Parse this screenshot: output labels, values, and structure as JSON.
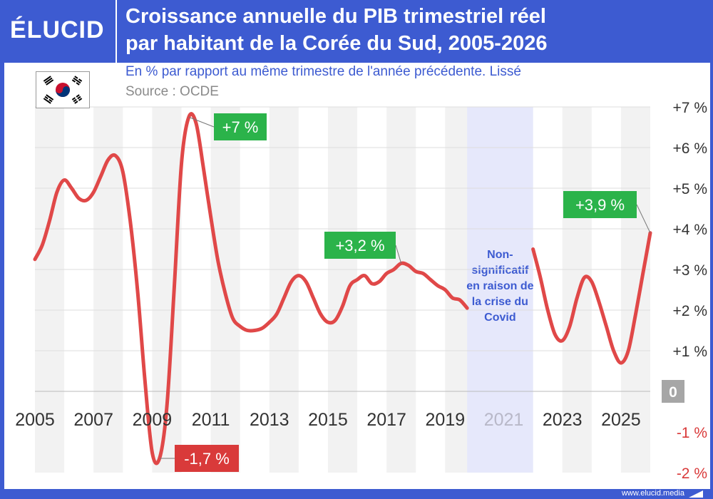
{
  "brand": {
    "logo_text": "ÉLUCID",
    "website": "www.elucid.media"
  },
  "header": {
    "title_line1": "Croissance annuelle du PIB trimestriel réel",
    "title_line2": "par habitant de la Corée du Sud, 2005-2026"
  },
  "subtitle": "En % par rapport au même trimestre de l'année précédente. Lissé",
  "source": "Source : OCDE",
  "flag_icon": "south-korea-flag-icon",
  "colors": {
    "line": "#e04848",
    "label_positive": "#2bb34a",
    "label_negative": "#d93a3a",
    "covid_band": "#e6e8fb",
    "covid_text": "#3d5bd1",
    "band_gray": "#f2f2f2",
    "axis_text": "#333333",
    "negative_tick": "#d93a3a",
    "zero_box": "#a6a6a6"
  },
  "chart_data": {
    "type": "line",
    "title": "",
    "xlabel": "",
    "ylabel": "",
    "xlim": [
      2005,
      2026
    ],
    "ylim": [
      -2,
      7
    ],
    "grid": true,
    "x_tick_labels": [
      "2005",
      "2007",
      "2009",
      "2011",
      "2013",
      "2015",
      "2017",
      "2019",
      "2021",
      "2023",
      "2025"
    ],
    "x_tick_values": [
      2005,
      2007,
      2009,
      2011,
      2013,
      2015,
      2017,
      2019,
      2021,
      2023,
      2025
    ],
    "y_tick_labels": [
      "+7 %",
      "+6 %",
      "+5 %",
      "+4 %",
      "+3 %",
      "+2 %",
      "+1 %",
      "0",
      "-1 %",
      "-2 %"
    ],
    "y_tick_values": [
      7,
      6,
      5,
      4,
      3,
      2,
      1,
      0,
      -1,
      -2
    ],
    "series": [
      {
        "segments": [
          [
            [
              2005.0,
              3.25
            ],
            [
              2005.25,
              3.6
            ],
            [
              2005.5,
              4.2
            ],
            [
              2005.75,
              4.9
            ],
            [
              2006.0,
              5.2
            ],
            [
              2006.25,
              5.0
            ],
            [
              2006.5,
              4.75
            ],
            [
              2006.75,
              4.7
            ],
            [
              2007.0,
              4.9
            ],
            [
              2007.25,
              5.3
            ],
            [
              2007.5,
              5.7
            ],
            [
              2007.75,
              5.8
            ],
            [
              2008.0,
              5.4
            ],
            [
              2008.25,
              4.2
            ],
            [
              2008.5,
              2.5
            ],
            [
              2008.75,
              0.3
            ],
            [
              2009.0,
              -1.5
            ],
            [
              2009.25,
              -1.65
            ],
            [
              2009.5,
              -0.4
            ],
            [
              2009.75,
              2.5
            ],
            [
              2010.0,
              5.6
            ],
            [
              2010.25,
              6.75
            ],
            [
              2010.5,
              6.6
            ],
            [
              2010.75,
              5.5
            ],
            [
              2011.0,
              4.3
            ],
            [
              2011.25,
              3.2
            ],
            [
              2011.5,
              2.4
            ],
            [
              2011.75,
              1.8
            ],
            [
              2012.0,
              1.6
            ],
            [
              2012.25,
              1.5
            ],
            [
              2012.5,
              1.5
            ],
            [
              2012.75,
              1.55
            ],
            [
              2013.0,
              1.7
            ],
            [
              2013.25,
              1.9
            ],
            [
              2013.5,
              2.3
            ],
            [
              2013.75,
              2.7
            ],
            [
              2014.0,
              2.85
            ],
            [
              2014.25,
              2.7
            ],
            [
              2014.5,
              2.3
            ],
            [
              2014.75,
              1.9
            ],
            [
              2015.0,
              1.7
            ],
            [
              2015.25,
              1.75
            ],
            [
              2015.5,
              2.1
            ],
            [
              2015.75,
              2.6
            ],
            [
              2016.0,
              2.75
            ],
            [
              2016.25,
              2.85
            ],
            [
              2016.5,
              2.65
            ],
            [
              2016.75,
              2.7
            ],
            [
              2017.0,
              2.9
            ],
            [
              2017.25,
              3.0
            ],
            [
              2017.5,
              3.15
            ],
            [
              2017.75,
              3.1
            ],
            [
              2018.0,
              2.95
            ],
            [
              2018.25,
              2.9
            ],
            [
              2018.5,
              2.75
            ],
            [
              2018.75,
              2.6
            ],
            [
              2019.0,
              2.5
            ],
            [
              2019.25,
              2.3
            ],
            [
              2019.5,
              2.25
            ],
            [
              2019.75,
              2.05
            ]
          ],
          [
            [
              2022.0,
              3.5
            ],
            [
              2022.25,
              2.8
            ],
            [
              2022.5,
              2.0
            ],
            [
              2022.75,
              1.4
            ],
            [
              2023.0,
              1.25
            ],
            [
              2023.25,
              1.6
            ],
            [
              2023.5,
              2.3
            ],
            [
              2023.75,
              2.8
            ],
            [
              2024.0,
              2.7
            ],
            [
              2024.25,
              2.2
            ],
            [
              2024.5,
              1.6
            ],
            [
              2024.75,
              1.0
            ],
            [
              2025.0,
              0.7
            ],
            [
              2025.25,
              1.0
            ],
            [
              2025.5,
              1.9
            ],
            [
              2025.75,
              2.9
            ],
            [
              2026.0,
              3.9
            ]
          ]
        ]
      }
    ],
    "covid_band": {
      "x_start": 2019.75,
      "x_end": 2022.0
    },
    "annotations": [
      {
        "label": "+7 %",
        "kind": "positive",
        "point": [
          2010.25,
          6.75
        ]
      },
      {
        "label": "-1,7 %",
        "kind": "negative",
        "point": [
          2009.25,
          -1.65
        ]
      },
      {
        "label": "+3,2 %",
        "kind": "positive",
        "point": [
          2017.5,
          3.15
        ]
      },
      {
        "label": "+3,9 %",
        "kind": "positive",
        "point": [
          2026.0,
          3.9
        ]
      }
    ],
    "covid_note_lines": [
      "Non-",
      "significatif",
      "en raison de",
      "la crise du",
      "Covid"
    ]
  }
}
